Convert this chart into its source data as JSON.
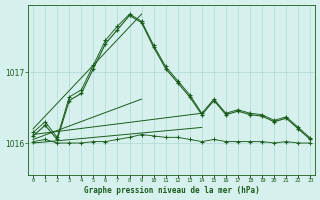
{
  "title": "Graphe pression niveau de la mer (hPa)",
  "bg_color": "#d6f0ee",
  "line_color": "#1a5c1a",
  "grid_color": "#b0d8d4",
  "yticks": [
    1016,
    1017
  ],
  "ylim": [
    1015.55,
    1017.95
  ],
  "xlim": [
    -0.4,
    23.4
  ],
  "hours": [
    0,
    1,
    2,
    3,
    4,
    5,
    6,
    7,
    8,
    9,
    10,
    11,
    12,
    13,
    14,
    15,
    16,
    17,
    18,
    19,
    20,
    21,
    22,
    23
  ],
  "x_labels": [
    "0",
    "1",
    "2",
    "3",
    "4",
    "5",
    "6",
    "7",
    "8",
    "9",
    "1011",
    "1213",
    "1415",
    "1617",
    "1819",
    "2021",
    "2223"
  ],
  "p_jagged": [
    1016.1,
    1016.25,
    1016.05,
    1016.6,
    1016.7,
    1017.05,
    1017.4,
    1017.6,
    1017.8,
    1017.7,
    1017.35,
    1017.05,
    1016.85,
    1016.65,
    1016.4,
    1016.6,
    1016.4,
    1016.45,
    1016.4,
    1016.38,
    1016.3,
    1016.35,
    1016.2,
    1016.05
  ],
  "p_upper": [
    1016.15,
    1016.3,
    1016.08,
    1016.65,
    1016.75,
    1017.1,
    1017.45,
    1017.65,
    1017.82,
    1017.72,
    1017.38,
    1017.08,
    1016.88,
    1016.68,
    1016.42,
    1016.62,
    1016.42,
    1016.47,
    1016.42,
    1016.4,
    1016.32,
    1016.37,
    1016.22,
    1016.07
  ],
  "p_lower": [
    1016.02,
    1016.05,
    1016.0,
    1016.0,
    1016.0,
    1016.02,
    1016.02,
    1016.05,
    1016.08,
    1016.12,
    1016.1,
    1016.08,
    1016.08,
    1016.05,
    1016.02,
    1016.05,
    1016.02,
    1016.02,
    1016.02,
    1016.02,
    1016.0,
    1016.02,
    1016.0,
    1016.0
  ],
  "diag_lines": [
    {
      "x": [
        0,
        9
      ],
      "y": [
        1016.2,
        1017.82
      ],
      "lw": 0.7
    },
    {
      "x": [
        0,
        9
      ],
      "y": [
        1016.05,
        1016.62
      ],
      "lw": 0.7
    },
    {
      "x": [
        0,
        14
      ],
      "y": [
        1016.12,
        1016.42
      ],
      "lw": 0.7
    },
    {
      "x": [
        0,
        14
      ],
      "y": [
        1016.0,
        1016.22
      ],
      "lw": 0.7
    }
  ]
}
